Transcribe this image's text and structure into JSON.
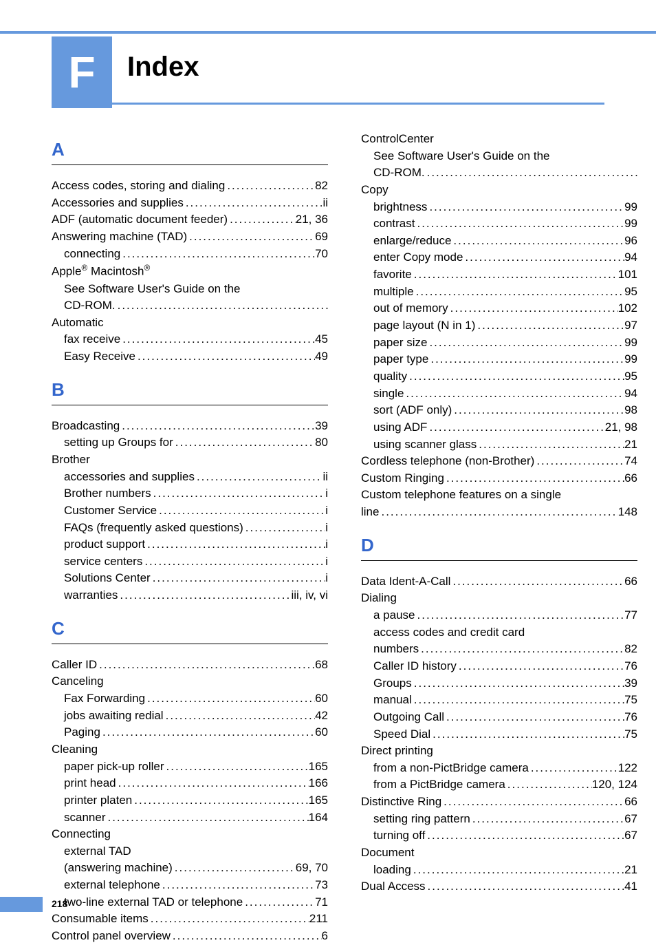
{
  "chapter": {
    "letter": "F",
    "title": "Index"
  },
  "page_number": "218",
  "colors": {
    "accent": "#6699dd",
    "link": "#3366cc",
    "text": "#000000",
    "bg": "#ffffff"
  },
  "left": [
    {
      "type": "section",
      "letter": "A",
      "first": true
    },
    {
      "type": "entry",
      "indent": 0,
      "label": "Access codes, storing and dialing",
      "pg": "82"
    },
    {
      "type": "entry",
      "indent": 0,
      "label": "Accessories and supplies",
      "pg": "ii"
    },
    {
      "type": "entry",
      "indent": 0,
      "label": "ADF (automatic document feeder)",
      "pg": "21, 36"
    },
    {
      "type": "entry",
      "indent": 0,
      "label": "Answering machine (TAD)",
      "pg": "69"
    },
    {
      "type": "entry",
      "indent": 1,
      "label": "connecting",
      "pg": "70"
    },
    {
      "type": "entry",
      "indent": 0,
      "label": "Apple® Macintosh®",
      "nodots": true
    },
    {
      "type": "entry",
      "indent": 1,
      "label": "See Software User's Guide on the",
      "nodots": true
    },
    {
      "type": "entry",
      "indent": 1,
      "label": "CD-ROM.",
      "pg": ""
    },
    {
      "type": "entry",
      "indent": 0,
      "label": "Automatic",
      "nodots": true
    },
    {
      "type": "entry",
      "indent": 1,
      "label": "fax receive",
      "pg": "45"
    },
    {
      "type": "entry",
      "indent": 1,
      "label": "  Easy Receive",
      "pg": "49"
    },
    {
      "type": "section",
      "letter": "B"
    },
    {
      "type": "entry",
      "indent": 0,
      "label": "Broadcasting",
      "pg": "39"
    },
    {
      "type": "entry",
      "indent": 1,
      "label": "setting up Groups for",
      "pg": "80"
    },
    {
      "type": "entry",
      "indent": 0,
      "label": "Brother",
      "nodots": true
    },
    {
      "type": "entry",
      "indent": 1,
      "label": "accessories and supplies",
      "pg": "ii"
    },
    {
      "type": "entry",
      "indent": 1,
      "label": "Brother numbers",
      "pg": "i"
    },
    {
      "type": "entry",
      "indent": 1,
      "label": "Customer Service",
      "pg": "i"
    },
    {
      "type": "entry",
      "indent": 1,
      "label": "FAQs (frequently asked questions)",
      "pg": "i"
    },
    {
      "type": "entry",
      "indent": 1,
      "label": "product support",
      "pg": "i"
    },
    {
      "type": "entry",
      "indent": 1,
      "label": "service centers",
      "pg": "i"
    },
    {
      "type": "entry",
      "indent": 1,
      "label": "Solutions Center",
      "pg": "i"
    },
    {
      "type": "entry",
      "indent": 1,
      "label": "warranties",
      "pg": "iii, iv, vi"
    },
    {
      "type": "section",
      "letter": "C"
    },
    {
      "type": "entry",
      "indent": 0,
      "label": "Caller ID",
      "pg": "68"
    },
    {
      "type": "entry",
      "indent": 0,
      "label": "Canceling",
      "nodots": true
    },
    {
      "type": "entry",
      "indent": 1,
      "label": "Fax Forwarding",
      "pg": "60"
    },
    {
      "type": "entry",
      "indent": 1,
      "label": "jobs awaiting redial",
      "pg": "42"
    },
    {
      "type": "entry",
      "indent": 1,
      "label": "Paging",
      "pg": "60"
    },
    {
      "type": "entry",
      "indent": 0,
      "label": "Cleaning",
      "nodots": true
    },
    {
      "type": "entry",
      "indent": 1,
      "label": "paper pick-up roller",
      "pg": "165"
    },
    {
      "type": "entry",
      "indent": 1,
      "label": "print head",
      "pg": "166"
    },
    {
      "type": "entry",
      "indent": 1,
      "label": "printer platen",
      "pg": "165"
    },
    {
      "type": "entry",
      "indent": 1,
      "label": "scanner",
      "pg": "164"
    },
    {
      "type": "entry",
      "indent": 0,
      "label": "Connecting",
      "nodots": true
    },
    {
      "type": "entry",
      "indent": 1,
      "label": "external TAD",
      "nodots": true
    },
    {
      "type": "entry",
      "indent": 1,
      "label": "(answering machine)",
      "pg": "69, 70"
    },
    {
      "type": "entry",
      "indent": 1,
      "label": "external telephone",
      "pg": "73"
    },
    {
      "type": "entry",
      "indent": 1,
      "label": "two-line external TAD or telephone",
      "pg": "71"
    },
    {
      "type": "entry",
      "indent": 0,
      "label": "Consumable items",
      "pg": "211"
    },
    {
      "type": "entry",
      "indent": 0,
      "label": "Control panel overview",
      "pg": "6"
    }
  ],
  "right": [
    {
      "type": "entry",
      "indent": 0,
      "label": "ControlCenter",
      "nodots": true
    },
    {
      "type": "entry",
      "indent": 1,
      "label": "See Software User's Guide on the",
      "nodots": true
    },
    {
      "type": "entry",
      "indent": 1,
      "label": "CD-ROM.",
      "pg": ""
    },
    {
      "type": "entry",
      "indent": 0,
      "label": "Copy",
      "nodots": true
    },
    {
      "type": "entry",
      "indent": 1,
      "label": "brightness",
      "pg": "99"
    },
    {
      "type": "entry",
      "indent": 1,
      "label": "contrast",
      "pg": "99"
    },
    {
      "type": "entry",
      "indent": 1,
      "label": "enlarge/reduce",
      "pg": "96"
    },
    {
      "type": "entry",
      "indent": 1,
      "label": "enter Copy mode",
      "pg": "94"
    },
    {
      "type": "entry",
      "indent": 1,
      "label": "favorite",
      "pg": "101"
    },
    {
      "type": "entry",
      "indent": 1,
      "label": "multiple",
      "pg": "95"
    },
    {
      "type": "entry",
      "indent": 1,
      "label": "out of memory",
      "pg": "102"
    },
    {
      "type": "entry",
      "indent": 1,
      "label": "page layout (N in 1)",
      "pg": "97"
    },
    {
      "type": "entry",
      "indent": 1,
      "label": "paper size",
      "pg": "99"
    },
    {
      "type": "entry",
      "indent": 1,
      "label": "paper type",
      "pg": "99"
    },
    {
      "type": "entry",
      "indent": 1,
      "label": "quality",
      "pg": "95"
    },
    {
      "type": "entry",
      "indent": 1,
      "label": "single",
      "pg": "94"
    },
    {
      "type": "entry",
      "indent": 1,
      "label": "sort (ADF only)",
      "pg": "98"
    },
    {
      "type": "entry",
      "indent": 1,
      "label": "using ADF",
      "pg": "21, 98"
    },
    {
      "type": "entry",
      "indent": 1,
      "label": "using scanner glass",
      "pg": "21"
    },
    {
      "type": "entry",
      "indent": 0,
      "label": "Cordless telephone (non-Brother)",
      "pg": "74"
    },
    {
      "type": "entry",
      "indent": 0,
      "label": "Custom Ringing",
      "pg": "66"
    },
    {
      "type": "entry",
      "indent": 0,
      "label": "Custom telephone features on a single",
      "nodots": true
    },
    {
      "type": "entry",
      "indent": 0,
      "label": "line",
      "pg": "148"
    },
    {
      "type": "section",
      "letter": "D"
    },
    {
      "type": "entry",
      "indent": 0,
      "label": "Data Ident-A-Call",
      "pg": "66"
    },
    {
      "type": "entry",
      "indent": 0,
      "label": "Dialing",
      "nodots": true
    },
    {
      "type": "entry",
      "indent": 1,
      "label": "a pause",
      "pg": "77"
    },
    {
      "type": "entry",
      "indent": 1,
      "label": "access codes and credit card",
      "nodots": true
    },
    {
      "type": "entry",
      "indent": 1,
      "label": "numbers",
      "pg": "82"
    },
    {
      "type": "entry",
      "indent": 1,
      "label": "Caller ID history",
      "pg": "76"
    },
    {
      "type": "entry",
      "indent": 1,
      "label": "Groups",
      "pg": "39"
    },
    {
      "type": "entry",
      "indent": 1,
      "label": "manual",
      "pg": "75"
    },
    {
      "type": "entry",
      "indent": 1,
      "label": "Outgoing Call",
      "pg": "76"
    },
    {
      "type": "entry",
      "indent": 1,
      "label": "Speed Dial",
      "pg": "75"
    },
    {
      "type": "entry",
      "indent": 0,
      "label": "Direct printing",
      "nodots": true
    },
    {
      "type": "entry",
      "indent": 1,
      "label": "from a non-PictBridge camera",
      "pg": "122"
    },
    {
      "type": "entry",
      "indent": 1,
      "label": "from a PictBridge camera",
      "pg": "120, 124"
    },
    {
      "type": "entry",
      "indent": 0,
      "label": "Distinctive Ring",
      "pg": "66"
    },
    {
      "type": "entry",
      "indent": 1,
      "label": "setting ring pattern",
      "pg": "67"
    },
    {
      "type": "entry",
      "indent": 1,
      "label": "turning off",
      "pg": "67"
    },
    {
      "type": "entry",
      "indent": 0,
      "label": "Document",
      "nodots": true
    },
    {
      "type": "entry",
      "indent": 1,
      "label": "loading",
      "pg": "21"
    },
    {
      "type": "entry",
      "indent": 0,
      "label": "Dual Access",
      "pg": "41"
    }
  ]
}
